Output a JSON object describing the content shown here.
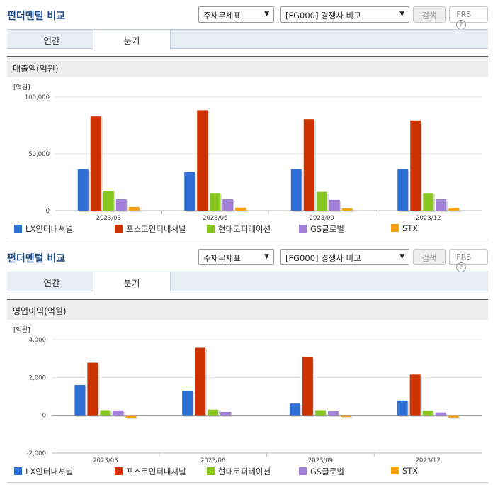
{
  "panels": [
    {
      "title": "펀더멘털 비교",
      "select1": "주재무제표",
      "select2": "[FG000] 경쟁사 비교",
      "search_label": "검색",
      "ifrs_label": "IFRS",
      "help_icon": "question-circle-icon",
      "tabs": [
        "연간",
        "분기"
      ],
      "active_tab": "분기",
      "chart_header": "매출액(억원)"
    },
    {
      "title": "펀더멘털 비교",
      "select1": "주재무제표",
      "select2": "[FG000] 경쟁사 비교",
      "search_label": "검색",
      "ifrs_label": "IFRS",
      "help_icon": "question-circle-icon",
      "tabs": [
        "연간",
        "분기"
      ],
      "active_tab": "분기",
      "chart_header": "영업이익(억원)"
    }
  ],
  "colors": {
    "LX": "#2e6fd6",
    "POSCO": "#cc3300",
    "HYUNDAI": "#88c622",
    "GS": "#a27fd9",
    "STX": "#f5a010"
  },
  "chart_data": [
    {
      "type": "bar",
      "unit_label": "[억원]",
      "categories": [
        "2023/03",
        "2023/06",
        "2023/09",
        "2023/12"
      ],
      "ylim": [
        0,
        100000
      ],
      "yticks": [
        0,
        50000,
        100000
      ],
      "ytick_labels": [
        "0",
        "50,000",
        "100,000"
      ],
      "series": [
        {
          "name": "LX인터내셔널",
          "color": "#2e6fd6",
          "values": [
            36500,
            34000,
            36500,
            36500
          ]
        },
        {
          "name": "포스코인터내셔널",
          "color": "#cc3300",
          "values": [
            83000,
            88500,
            80500,
            79500
          ]
        },
        {
          "name": "현대코퍼레이션",
          "color": "#88c622",
          "values": [
            17500,
            15500,
            16500,
            15500
          ]
        },
        {
          "name": "GS글로벌",
          "color": "#a27fd9",
          "values": [
            10000,
            10000,
            9500,
            10000
          ]
        },
        {
          "name": "STX",
          "color": "#f5a010",
          "values": [
            3200,
            2600,
            2000,
            2400
          ]
        }
      ],
      "legend_position": "bottom",
      "grid": true
    },
    {
      "type": "bar",
      "unit_label": "[억원]",
      "categories": [
        "2023/03",
        "2023/06",
        "2023/09",
        "2023/12"
      ],
      "ylim": [
        -2000,
        4000
      ],
      "yticks": [
        -2000,
        0,
        2000,
        4000
      ],
      "ytick_labels": [
        "-2,000",
        "0",
        "2,000",
        "4,000"
      ],
      "series": [
        {
          "name": "LX인터내셔널",
          "color": "#2e6fd6",
          "values": [
            1600,
            1300,
            620,
            780
          ]
        },
        {
          "name": "포스코인터내셔널",
          "color": "#cc3300",
          "values": [
            2780,
            3570,
            3080,
            2150
          ]
        },
        {
          "name": "현대코퍼레이션",
          "color": "#88c622",
          "values": [
            270,
            300,
            270,
            240
          ]
        },
        {
          "name": "GS글로벌",
          "color": "#a27fd9",
          "values": [
            260,
            180,
            210,
            150
          ]
        },
        {
          "name": "STX",
          "color": "#f5a010",
          "values": [
            -130,
            0,
            -80,
            -120
          ]
        }
      ],
      "legend_position": "bottom",
      "grid": true
    }
  ]
}
